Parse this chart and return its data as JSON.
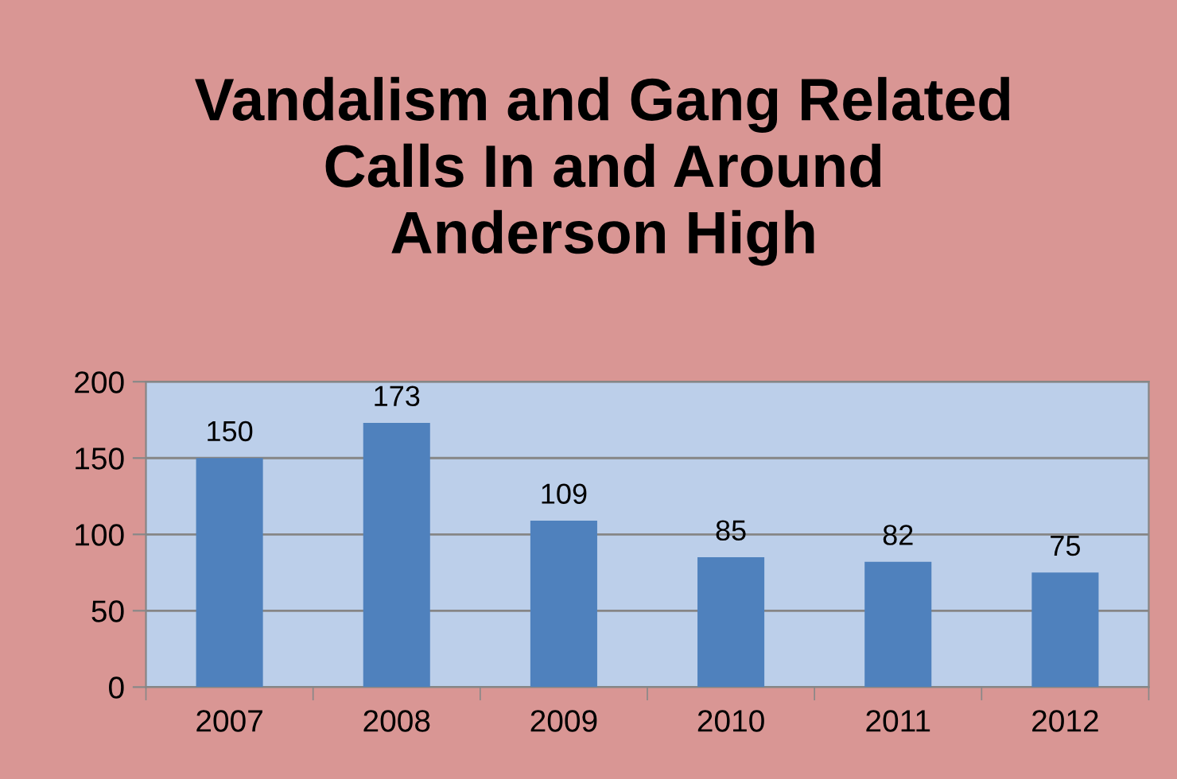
{
  "chart_data": {
    "type": "bar",
    "title": "Vandalism and Gang Related\nCalls In and Around\nAnderson High",
    "categories": [
      "2007",
      "2008",
      "2009",
      "2010",
      "2011",
      "2012"
    ],
    "values": [
      150,
      173,
      109,
      85,
      82,
      75
    ],
    "color": "#4f81bd",
    "ylim": [
      0,
      200
    ],
    "yticks": [
      0,
      50,
      100,
      150,
      200
    ],
    "grid": "y",
    "data_labels": true
  }
}
